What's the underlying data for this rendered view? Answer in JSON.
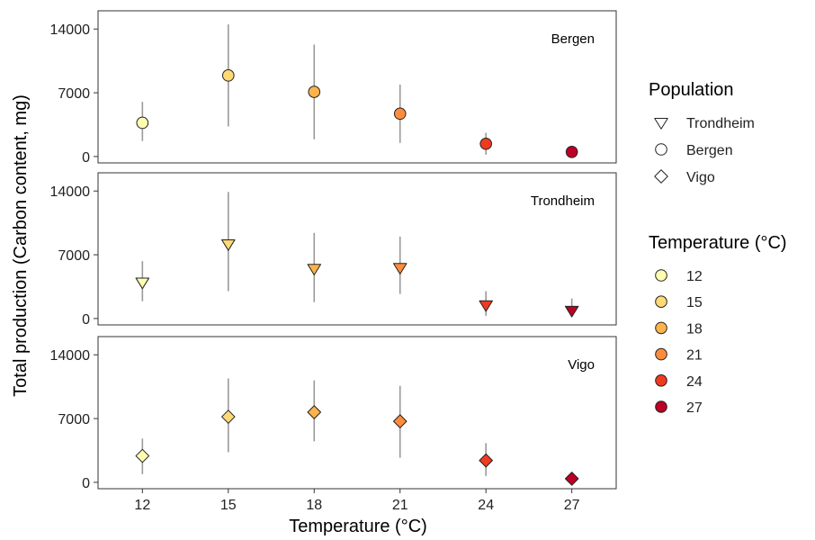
{
  "chart_data": {
    "type": "scatter",
    "xlabel": "Temperature (°C)",
    "ylabel": "Total production (Carbon content, mg)",
    "x_ticks": [
      12,
      15,
      18,
      21,
      24,
      27
    ],
    "y_ticks": [
      0,
      7000,
      14000
    ],
    "ylim": [
      -700,
      16000
    ],
    "grid": false,
    "legend_placement": "right",
    "panels": [
      {
        "label": "Bergen",
        "shape": "circle",
        "points": [
          {
            "x": 12,
            "y": 3700,
            "low": 1700,
            "high": 6000
          },
          {
            "x": 15,
            "y": 8900,
            "low": 3300,
            "high": 14500
          },
          {
            "x": 18,
            "y": 7100,
            "low": 1900,
            "high": 12300
          },
          {
            "x": 21,
            "y": 4700,
            "low": 1500,
            "high": 7900
          },
          {
            "x": 24,
            "y": 1400,
            "low": 200,
            "high": 2600
          },
          {
            "x": 27,
            "y": 500,
            "low": 200,
            "high": 900
          }
        ]
      },
      {
        "label": "Trondheim",
        "shape": "triangle-down",
        "points": [
          {
            "x": 12,
            "y": 4000,
            "low": 1900,
            "high": 6300
          },
          {
            "x": 15,
            "y": 8200,
            "low": 3000,
            "high": 13900
          },
          {
            "x": 18,
            "y": 5500,
            "low": 1800,
            "high": 9400
          },
          {
            "x": 21,
            "y": 5600,
            "low": 2700,
            "high": 9000
          },
          {
            "x": 24,
            "y": 1500,
            "low": 300,
            "high": 3000
          },
          {
            "x": 27,
            "y": 900,
            "low": 200,
            "high": 2200
          }
        ]
      },
      {
        "label": "Vigo",
        "shape": "diamond",
        "points": [
          {
            "x": 12,
            "y": 2900,
            "low": 900,
            "high": 4800
          },
          {
            "x": 15,
            "y": 7200,
            "low": 3300,
            "high": 11400
          },
          {
            "x": 18,
            "y": 7700,
            "low": 4500,
            "high": 11200
          },
          {
            "x": 21,
            "y": 6700,
            "low": 2700,
            "high": 10600
          },
          {
            "x": 24,
            "y": 2400,
            "low": 700,
            "high": 4300
          },
          {
            "x": 27,
            "y": 400,
            "low": 200,
            "high": 700
          }
        ]
      }
    ],
    "legend_population": {
      "title": "Population",
      "items": [
        {
          "label": "Trondheim",
          "shape": "triangle-down"
        },
        {
          "label": "Bergen",
          "shape": "circle"
        },
        {
          "label": "Vigo",
          "shape": "diamond"
        }
      ]
    },
    "legend_temperature": {
      "title": "Temperature (°C)",
      "items": [
        {
          "label": "12",
          "value": 12,
          "color": "#ffffb2"
        },
        {
          "label": "15",
          "value": 15,
          "color": "#fed976"
        },
        {
          "label": "18",
          "value": 18,
          "color": "#feb24c"
        },
        {
          "label": "21",
          "value": 21,
          "color": "#fd8d3c"
        },
        {
          "label": "24",
          "value": 24,
          "color": "#f03b20"
        },
        {
          "label": "27",
          "value": 27,
          "color": "#bd0026"
        }
      ]
    }
  }
}
